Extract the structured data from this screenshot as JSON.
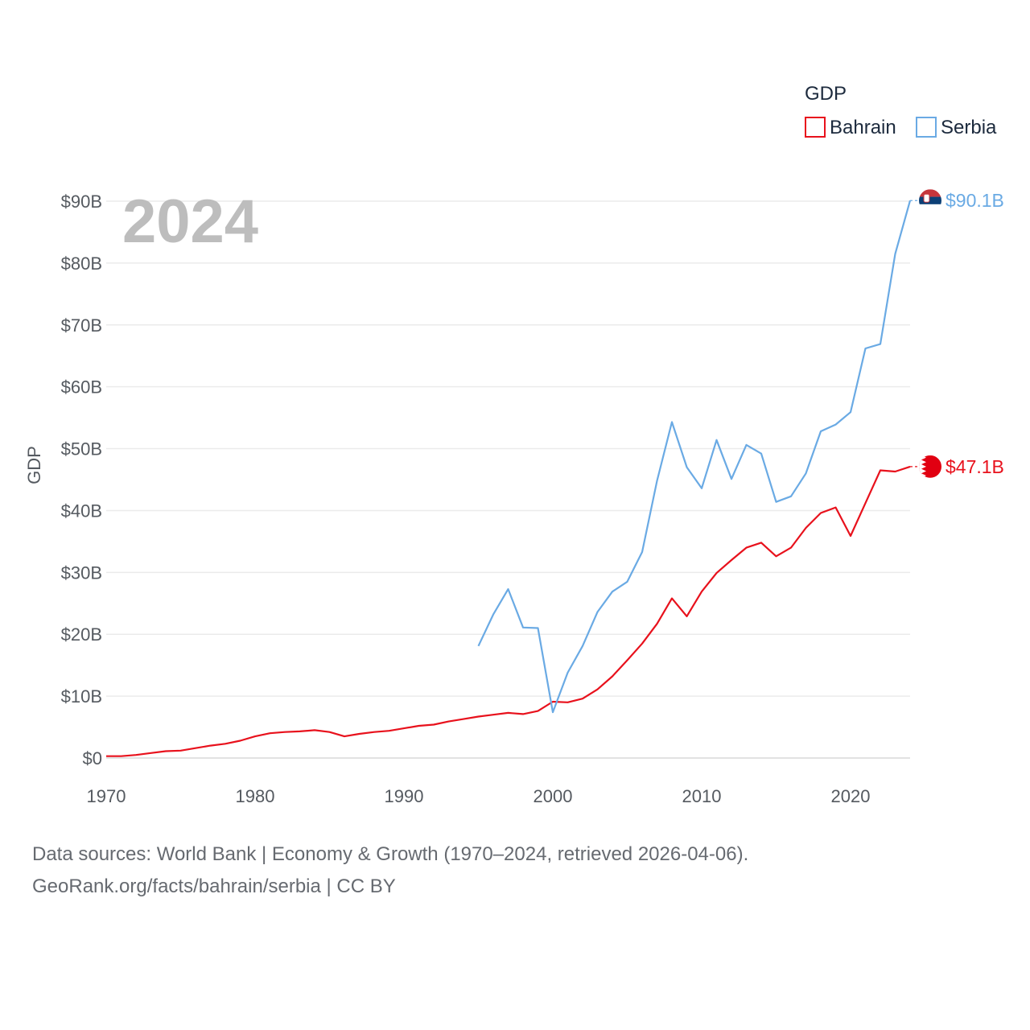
{
  "chart_data": {
    "type": "line",
    "year_label": "2024",
    "ylabel": "GDP",
    "xlabel": "",
    "xlim": [
      1970,
      2024
    ],
    "ylim": [
      0,
      90
    ],
    "y_ticks": [
      0,
      10,
      20,
      30,
      40,
      50,
      60,
      70,
      80,
      90
    ],
    "y_tick_labels": [
      "$0",
      "$10B",
      "$20B",
      "$30B",
      "$40B",
      "$50B",
      "$60B",
      "$70B",
      "$80B",
      "$90B"
    ],
    "x_ticks": [
      1970,
      1980,
      1990,
      2000,
      2010,
      2020
    ],
    "x_tick_labels": [
      "1970",
      "1980",
      "1990",
      "2000",
      "2010",
      "2020"
    ],
    "legend": {
      "title": "GDP",
      "placement": "top-right"
    },
    "series": [
      {
        "name": "Bahrain",
        "color": "#e8111c",
        "end_label": "$47.1B",
        "flag": "bahrain-flag-icon",
        "x": [
          1970,
          1971,
          1972,
          1973,
          1974,
          1975,
          1976,
          1977,
          1978,
          1979,
          1980,
          1981,
          1982,
          1983,
          1984,
          1985,
          1986,
          1987,
          1988,
          1989,
          1990,
          1991,
          1992,
          1993,
          1994,
          1995,
          1996,
          1997,
          1998,
          1999,
          2000,
          2001,
          2002,
          2003,
          2004,
          2005,
          2006,
          2007,
          2008,
          2009,
          2010,
          2011,
          2012,
          2013,
          2014,
          2015,
          2016,
          2017,
          2018,
          2019,
          2020,
          2021,
          2022,
          2023,
          2024
        ],
        "values": [
          0.3,
          0.3,
          0.5,
          0.8,
          1.1,
          1.2,
          1.6,
          2.0,
          2.3,
          2.8,
          3.5,
          4.0,
          4.2,
          4.3,
          4.5,
          4.2,
          3.5,
          3.9,
          4.2,
          4.4,
          4.8,
          5.2,
          5.4,
          5.9,
          6.3,
          6.7,
          7.0,
          7.3,
          7.1,
          7.6,
          9.1,
          9.0,
          9.6,
          11.1,
          13.2,
          15.8,
          18.5,
          21.7,
          25.8,
          22.9,
          26.9,
          29.9,
          32.0,
          34.0,
          34.8,
          32.6,
          34.0,
          37.2,
          39.6,
          40.5,
          35.9,
          41.2,
          46.5,
          46.3,
          47.1
        ]
      },
      {
        "name": "Serbia",
        "color": "#6aaae4",
        "end_label": "$90.1B",
        "flag": "serbia-flag-icon",
        "x": [
          1995,
          1996,
          1997,
          1998,
          1999,
          2000,
          2001,
          2002,
          2003,
          2004,
          2005,
          2006,
          2007,
          2008,
          2009,
          2010,
          2011,
          2012,
          2013,
          2014,
          2015,
          2016,
          2017,
          2018,
          2019,
          2020,
          2021,
          2022,
          2023,
          2024
        ],
        "values": [
          18.1,
          23.2,
          27.3,
          21.1,
          21.0,
          7.4,
          13.8,
          18.1,
          23.6,
          26.9,
          28.5,
          33.3,
          44.8,
          54.3,
          47.0,
          43.6,
          51.4,
          45.1,
          50.6,
          49.2,
          41.4,
          42.3,
          46.0,
          52.8,
          53.9,
          55.9,
          66.2,
          66.9,
          81.5,
          90.1
        ]
      }
    ]
  },
  "source": {
    "line1": "Data sources: World Bank | Economy & Growth (1970–2024, retrieved 2026-04-06).",
    "line2": "GeoRank.org/facts/bahrain/serbia | CC BY"
  }
}
